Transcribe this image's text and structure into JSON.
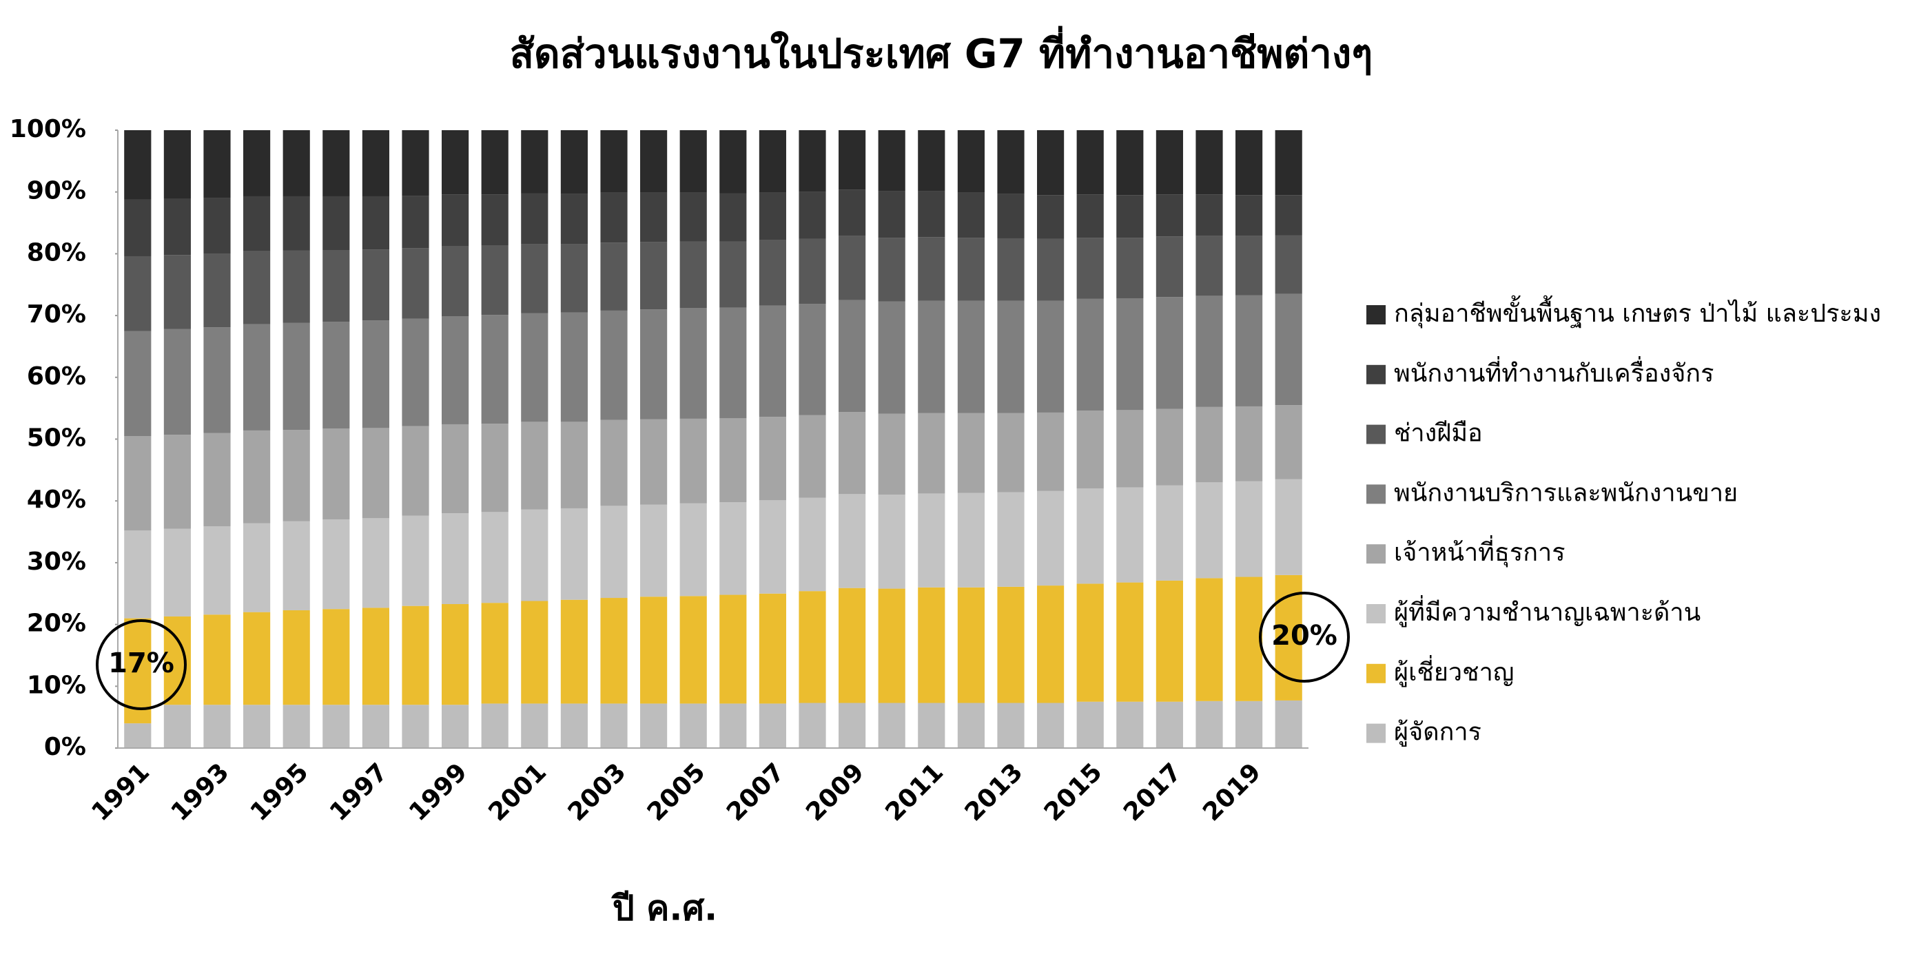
{
  "chart_data": {
    "type": "stacked_bar_100",
    "title": "สัดส่วนแรงงานในประเทศ G7 ที่ทำงานอาชีพต่างๆ",
    "x_label": "ปี ค.ศ.",
    "categories": [
      "1991",
      null,
      "1993",
      null,
      "1995",
      null,
      "1997",
      null,
      "1999",
      null,
      "2001",
      null,
      "2003",
      null,
      "2005",
      null,
      "2007",
      null,
      "2009",
      null,
      "2011",
      null,
      "2013",
      null,
      "2015",
      null,
      "2017",
      null,
      "2019",
      null
    ],
    "ylim": [
      0,
      100
    ],
    "yticks": [
      {
        "value": 0,
        "label": "0%"
      },
      {
        "value": 10,
        "label": "10%"
      },
      {
        "value": 20,
        "label": "20%"
      },
      {
        "value": 30,
        "label": "30%"
      },
      {
        "value": 40,
        "label": "40%"
      },
      {
        "value": 50,
        "label": "50%"
      },
      {
        "value": 60,
        "label": "60%"
      },
      {
        "value": 70,
        "label": "70%"
      },
      {
        "value": 80,
        "label": "80%"
      },
      {
        "value": 90,
        "label": "90%"
      },
      {
        "value": 100,
        "label": "100%"
      }
    ],
    "legend": "right",
    "series": [
      {
        "name": "กลุ่มอาชีพขั้นพื้นฐาน เกษตร ป่าไม้ และประมง",
        "color": "#2b2b2b",
        "values": [
          11.2,
          11.1,
          11.0,
          10.7,
          10.7,
          10.7,
          10.7,
          10.6,
          10.4,
          10.4,
          10.2,
          10.3,
          10.1,
          10.1,
          10.1,
          10.2,
          10.1,
          10.0,
          9.6,
          9.9,
          9.9,
          10.1,
          10.3,
          10.5,
          10.4,
          10.5,
          10.4,
          10.4,
          10.5,
          10.5
        ]
      },
      {
        "name": "พนักงานที่ทำงานกับเครื่องจักร",
        "color": "#404040",
        "values": [
          9.2,
          9.1,
          9.0,
          8.9,
          8.8,
          8.7,
          8.6,
          8.5,
          8.4,
          8.3,
          8.2,
          8.1,
          8.1,
          8.0,
          7.9,
          7.8,
          7.7,
          7.6,
          7.5,
          7.5,
          7.4,
          7.3,
          7.2,
          7.1,
          7.0,
          6.9,
          6.8,
          6.7,
          6.6,
          6.5
        ]
      },
      {
        "name": "ช่างฝีมือ",
        "color": "#595959",
        "values": [
          12.1,
          12.0,
          11.9,
          11.8,
          11.7,
          11.6,
          11.5,
          11.4,
          11.3,
          11.2,
          11.2,
          11.1,
          11.0,
          10.9,
          10.8,
          10.7,
          10.6,
          10.5,
          10.4,
          10.3,
          10.3,
          10.2,
          10.1,
          10.0,
          9.9,
          9.8,
          9.8,
          9.7,
          9.6,
          9.5
        ]
      },
      {
        "name": "พนักงานบริการและพนักงานขาย",
        "color": "#7f7f7f",
        "values": [
          17.0,
          17.1,
          17.1,
          17.2,
          17.3,
          17.3,
          17.4,
          17.4,
          17.5,
          17.6,
          17.6,
          17.7,
          17.7,
          17.8,
          17.9,
          17.9,
          18.0,
          18.0,
          18.1,
          18.2,
          18.2,
          18.2,
          18.2,
          18.1,
          18.1,
          18.1,
          18.1,
          18.0,
          18.0,
          18.0
        ]
      },
      {
        "name": "เจ้าหน้าที่ธุรการ",
        "color": "#a5a5a5",
        "values": [
          15.3,
          15.2,
          15.1,
          15.0,
          14.8,
          14.7,
          14.6,
          14.5,
          14.4,
          14.3,
          14.2,
          14.0,
          13.9,
          13.8,
          13.7,
          13.6,
          13.5,
          13.4,
          13.3,
          13.1,
          13.0,
          12.9,
          12.8,
          12.7,
          12.6,
          12.5,
          12.4,
          12.2,
          12.1,
          12.0
        ]
      },
      {
        "name": "ผู้ที่มีความชำนาญเฉพาะด้าน",
        "color": "#c3c3c3",
        "values": [
          14.2,
          14.2,
          14.3,
          14.4,
          14.4,
          14.5,
          14.5,
          14.6,
          14.7,
          14.7,
          14.8,
          14.8,
          14.9,
          14.9,
          15.0,
          15.0,
          15.1,
          15.1,
          15.2,
          15.2,
          15.2,
          15.3,
          15.3,
          15.3,
          15.4,
          15.4,
          15.4,
          15.5,
          15.5,
          15.5
        ]
      },
      {
        "name": "ผู้เชี่ยวชาญ",
        "color": "#ebbd2f",
        "values": [
          17,
          14.3,
          14.6,
          15.0,
          15.3,
          15.5,
          15.7,
          16.0,
          16.3,
          16.3,
          16.6,
          16.8,
          17.1,
          17.3,
          17.4,
          17.6,
          17.8,
          18.1,
          18.6,
          18.5,
          18.7,
          18.7,
          18.8,
          19.0,
          19.1,
          19.3,
          19.6,
          19.9,
          20.1,
          20.3
        ]
      },
      {
        "name": "ผู้จัดการ",
        "color": "#bdbdbd",
        "values": [
          4,
          7,
          7,
          7,
          7,
          7,
          7,
          7,
          7,
          7.2,
          7.2,
          7.2,
          7.2,
          7.2,
          7.2,
          7.2,
          7.2,
          7.3,
          7.3,
          7.3,
          7.3,
          7.3,
          7.3,
          7.3,
          7.5,
          7.5,
          7.5,
          7.6,
          7.6,
          7.7
        ]
      }
    ],
    "annotations": [
      "17%",
      "20%"
    ]
  }
}
